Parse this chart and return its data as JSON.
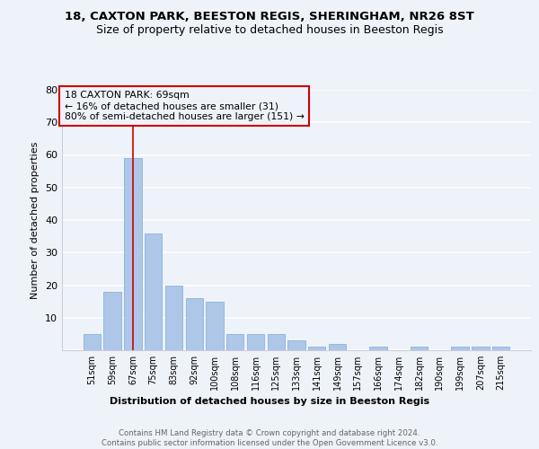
{
  "title": "18, CAXTON PARK, BEESTON REGIS, SHERINGHAM, NR26 8ST",
  "subtitle": "Size of property relative to detached houses in Beeston Regis",
  "xlabel": "Distribution of detached houses by size in Beeston Regis",
  "ylabel": "Number of detached properties",
  "categories": [
    "51sqm",
    "59sqm",
    "67sqm",
    "75sqm",
    "83sqm",
    "92sqm",
    "100sqm",
    "108sqm",
    "116sqm",
    "125sqm",
    "133sqm",
    "141sqm",
    "149sqm",
    "157sqm",
    "166sqm",
    "174sqm",
    "182sqm",
    "190sqm",
    "199sqm",
    "207sqm",
    "215sqm"
  ],
  "values": [
    5,
    18,
    59,
    36,
    20,
    16,
    15,
    5,
    5,
    5,
    3,
    1,
    2,
    0,
    1,
    0,
    1,
    0,
    1,
    1,
    1
  ],
  "bar_color": "#aec6e8",
  "bar_edge_color": "#7aadd4",
  "vline_x": 2,
  "vline_color": "#cc0000",
  "annotation_line1": "18 CAXTON PARK: 69sqm",
  "annotation_line2": "← 16% of detached houses are smaller (31)",
  "annotation_line3": "80% of semi-detached houses are larger (151) →",
  "annotation_box_color": "#cc0000",
  "ylim": [
    0,
    80
  ],
  "yticks": [
    0,
    10,
    20,
    30,
    40,
    50,
    60,
    70,
    80
  ],
  "footer_text": "Contains HM Land Registry data © Crown copyright and database right 2024.\nContains public sector information licensed under the Open Government Licence v3.0.",
  "bg_color": "#eef2f9",
  "grid_color": "#ffffff",
  "title_fontsize": 9.5,
  "subtitle_fontsize": 9
}
